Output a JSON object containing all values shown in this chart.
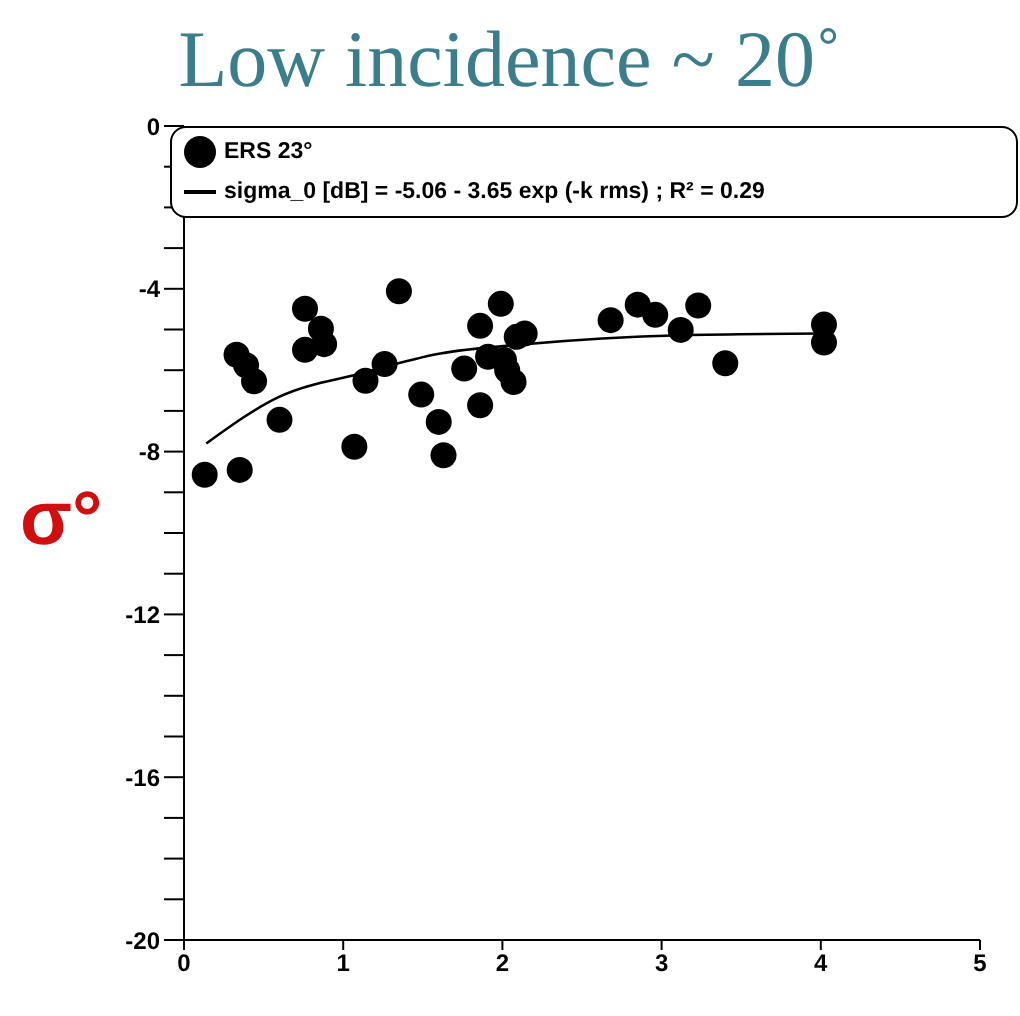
{
  "chart_data": {
    "type": "scatter",
    "title": "Low incidence ~ 20˚",
    "ylabel": "σ°",
    "xlim": [
      0,
      5
    ],
    "xticks": [
      0,
      1,
      2,
      3,
      4,
      5
    ],
    "ylim": [
      -20,
      0
    ],
    "yticks": [
      {
        "value": -20,
        "label": "-20"
      },
      {
        "value": -19,
        "label": null
      },
      {
        "value": -18,
        "label": null
      },
      {
        "value": -17,
        "label": null
      },
      {
        "value": -16,
        "label": "-16"
      },
      {
        "value": -15,
        "label": null
      },
      {
        "value": -14,
        "label": null
      },
      {
        "value": -13,
        "label": null
      },
      {
        "value": -12,
        "label": "-12"
      },
      {
        "value": -11,
        "label": null
      },
      {
        "value": -10,
        "label": null
      },
      {
        "value": -9,
        "label": null
      },
      {
        "value": -8,
        "label": "-8"
      },
      {
        "value": -7,
        "label": null
      },
      {
        "value": -6,
        "label": null
      },
      {
        "value": -5,
        "label": null
      },
      {
        "value": -4,
        "label": "-4"
      },
      {
        "value": -3,
        "label": null
      },
      {
        "value": -2,
        "label": null
      },
      {
        "value": -1,
        "label": null
      },
      {
        "value": 0,
        "label": "0"
      }
    ],
    "grid": false,
    "legend": "top",
    "series": [
      {
        "name": "ERS 23°",
        "type": "scatter",
        "marker": "circle",
        "color": "#000000",
        "x": [
          0.13,
          0.35,
          0.33,
          0.39,
          0.44,
          0.6,
          0.76,
          0.86,
          0.88,
          0.76,
          1.07,
          1.14,
          1.26,
          1.35,
          1.49,
          1.6,
          1.63,
          1.76,
          1.86,
          1.86,
          1.99,
          1.91,
          2.01,
          2.03,
          2.07,
          2.09,
          2.14,
          2.68,
          2.85,
          2.96,
          3.23,
          3.12,
          3.4,
          4.02,
          4.02
        ],
        "values": [
          -8.57,
          -8.45,
          -5.62,
          -5.88,
          -6.27,
          -7.22,
          -4.49,
          -4.98,
          -5.36,
          -5.5,
          -7.88,
          -6.26,
          -5.85,
          -4.06,
          -6.6,
          -7.27,
          -8.09,
          -5.96,
          -6.86,
          -4.91,
          -4.37,
          -5.67,
          -5.75,
          -6.0,
          -6.29,
          -5.18,
          -5.1,
          -4.77,
          -4.39,
          -4.64,
          -4.41,
          -5.01,
          -5.83,
          -4.88,
          -5.32
        ]
      },
      {
        "name": "sigma_0 [dB] = -5.06 - 3.65 exp (-k rms)  ;  R² = 0.29",
        "type": "line",
        "marker": "none",
        "color": "#000000",
        "line_style": "solid",
        "x": [
          0.14,
          0.6,
          1.11,
          1.61,
          2.12,
          3.12,
          4.02
        ],
        "values": [
          -7.8,
          -6.65,
          -6.08,
          -5.59,
          -5.37,
          -5.14,
          -5.1
        ]
      }
    ]
  }
}
